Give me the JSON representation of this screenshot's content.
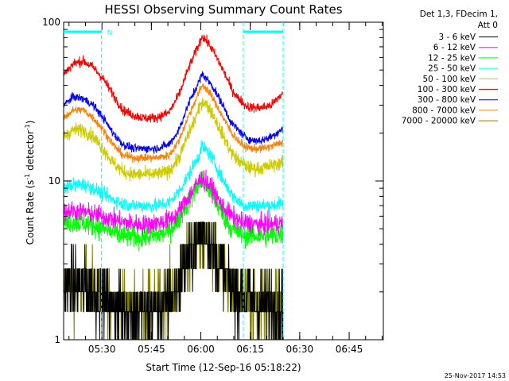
{
  "chart_data": {
    "type": "line",
    "title": "HESSI Observing Summary Count Rates",
    "xlabel": "Start Time (12-Sep-16 05:18:22)",
    "ylabel_main": "Count Rate (s",
    "ylabel_sup1": "-1",
    "ylabel_mid": " detector",
    "ylabel_sup2": "-1",
    "ylabel_end": ")",
    "y_scale": "log",
    "ylim": [
      1,
      100
    ],
    "y_ticks": [
      {
        "value": 1,
        "label": "1"
      },
      {
        "value": 10,
        "label": "10"
      },
      {
        "value": 100,
        "label": "100"
      }
    ],
    "x_range_min": [
      0,
      66.6
    ],
    "x_ticks": [
      {
        "t": 11.63,
        "label": "05:30"
      },
      {
        "t": 26.63,
        "label": "05:45"
      },
      {
        "t": 41.63,
        "label": "06:00"
      },
      {
        "t": 56.63,
        "label": "06:15"
      },
      {
        "t": 71.63,
        "label": "06:30"
      },
      {
        "t": 86.63,
        "label": "06:45"
      }
    ],
    "x_minor_step_min": 5,
    "legend_header": [
      "Det 1,3, FDecim 1,",
      "Att 0"
    ],
    "legend_position": "right",
    "flag_marker": "N",
    "flag_bars": [
      {
        "start_min": 0,
        "end_min": 11.5
      },
      {
        "start_min": 54.5,
        "end_min": 66.6
      }
    ],
    "boundary_lines_min": [
      11.5,
      54.5,
      66.6
    ],
    "series": [
      {
        "name": "3 - 6 keV",
        "color": "#000000"
      },
      {
        "name": "6 - 12 keV",
        "color": "#ff00ff"
      },
      {
        "name": "12 - 25 keV",
        "color": "#00ff00"
      },
      {
        "name": "25 - 50 keV",
        "color": "#00ffff"
      },
      {
        "name": "50 - 100 keV",
        "color": "#cccc00"
      },
      {
        "name": "100 - 300 keV",
        "color": "#ff0000"
      },
      {
        "name": "300 - 800 keV",
        "color": "#0000ff"
      },
      {
        "name": "800 - 7000 keV",
        "color": "#ff8000"
      },
      {
        "name": "7000 - 20000 keV",
        "color": "#808000"
      }
    ],
    "profiles": [
      {
        "series": "100 - 300 keV",
        "color": "#ff0000",
        "points": [
          [
            0,
            47
          ],
          [
            3,
            55
          ],
          [
            6,
            57
          ],
          [
            9,
            52
          ],
          [
            12,
            44
          ],
          [
            15,
            35
          ],
          [
            18,
            28
          ],
          [
            21,
            26
          ],
          [
            24,
            25
          ],
          [
            28,
            25
          ],
          [
            32,
            27
          ],
          [
            35,
            35
          ],
          [
            38,
            52
          ],
          [
            41,
            72
          ],
          [
            42,
            82
          ],
          [
            43,
            78
          ],
          [
            45,
            68
          ],
          [
            48,
            52
          ],
          [
            51,
            38
          ],
          [
            53,
            33
          ],
          [
            54,
            32
          ],
          [
            55,
            30
          ],
          [
            57,
            29
          ],
          [
            60,
            29
          ],
          [
            63,
            30
          ],
          [
            66,
            35
          ]
        ],
        "noise": 0.07
      },
      {
        "series": "300 - 800 keV",
        "color": "#0000ff",
        "points": [
          [
            0,
            30
          ],
          [
            3,
            34
          ],
          [
            6,
            33
          ],
          [
            9,
            30
          ],
          [
            12,
            25
          ],
          [
            15,
            20
          ],
          [
            18,
            17
          ],
          [
            21,
            16
          ],
          [
            24,
            16
          ],
          [
            28,
            16
          ],
          [
            32,
            17
          ],
          [
            35,
            21
          ],
          [
            38,
            31
          ],
          [
            41,
            42
          ],
          [
            42,
            47
          ],
          [
            43,
            45
          ],
          [
            45,
            40
          ],
          [
            48,
            31
          ],
          [
            51,
            23
          ],
          [
            53,
            21
          ],
          [
            54,
            20
          ],
          [
            55,
            19
          ],
          [
            57,
            18
          ],
          [
            60,
            18
          ],
          [
            63,
            19
          ],
          [
            66,
            21
          ]
        ],
        "noise": 0.06
      },
      {
        "series": "800 - 7000 keV",
        "color": "#ff8000",
        "points": [
          [
            0,
            25
          ],
          [
            3,
            28
          ],
          [
            6,
            28
          ],
          [
            9,
            25
          ],
          [
            12,
            21
          ],
          [
            15,
            17
          ],
          [
            18,
            14.5
          ],
          [
            21,
            14
          ],
          [
            24,
            14
          ],
          [
            28,
            14
          ],
          [
            32,
            14.5
          ],
          [
            35,
            18
          ],
          [
            38,
            26
          ],
          [
            41,
            36
          ],
          [
            42,
            40
          ],
          [
            43,
            39
          ],
          [
            45,
            34
          ],
          [
            48,
            26
          ],
          [
            51,
            20
          ],
          [
            53,
            18
          ],
          [
            54,
            17
          ],
          [
            55,
            16.5
          ],
          [
            57,
            16
          ],
          [
            60,
            16
          ],
          [
            63,
            16.5
          ],
          [
            66,
            17.5
          ]
        ],
        "noise": 0.06
      },
      {
        "series": "50 - 100 keV",
        "color": "#cccc00",
        "points": [
          [
            0,
            19
          ],
          [
            3,
            21
          ],
          [
            6,
            21
          ],
          [
            9,
            19
          ],
          [
            12,
            16
          ],
          [
            15,
            13
          ],
          [
            18,
            11.5
          ],
          [
            21,
            11
          ],
          [
            24,
            11
          ],
          [
            28,
            11
          ],
          [
            32,
            11.5
          ],
          [
            35,
            14
          ],
          [
            38,
            20
          ],
          [
            41,
            28
          ],
          [
            42,
            32
          ],
          [
            43,
            31
          ],
          [
            45,
            27
          ],
          [
            48,
            20
          ],
          [
            51,
            15
          ],
          [
            53,
            13.5
          ],
          [
            54,
            13
          ],
          [
            55,
            12.5
          ],
          [
            57,
            12
          ],
          [
            60,
            12
          ],
          [
            63,
            12.5
          ],
          [
            66,
            13
          ]
        ],
        "noise": 0.1
      },
      {
        "series": "25 - 50 keV",
        "color": "#00ffff",
        "points": [
          [
            0,
            9
          ],
          [
            3,
            9.5
          ],
          [
            6,
            9.5
          ],
          [
            9,
            9
          ],
          [
            12,
            8.3
          ],
          [
            15,
            7.6
          ],
          [
            18,
            7.2
          ],
          [
            21,
            7
          ],
          [
            24,
            7
          ],
          [
            28,
            7
          ],
          [
            32,
            7.3
          ],
          [
            35,
            8.6
          ],
          [
            38,
            11
          ],
          [
            41,
            14.5
          ],
          [
            42,
            16.5
          ],
          [
            43,
            16
          ],
          [
            45,
            14
          ],
          [
            48,
            10.5
          ],
          [
            51,
            8.2
          ],
          [
            53,
            7.5
          ],
          [
            54,
            7.2
          ],
          [
            55,
            7
          ],
          [
            57,
            7
          ],
          [
            60,
            7
          ],
          [
            63,
            7
          ],
          [
            66,
            7.2
          ]
        ],
        "noise": 0.1
      },
      {
        "series": "6 - 12 keV",
        "color": "#ff00ff",
        "points": [
          [
            0,
            6.5
          ],
          [
            6,
            6.4
          ],
          [
            12,
            6
          ],
          [
            18,
            5.5
          ],
          [
            24,
            5.3
          ],
          [
            30,
            5.5
          ],
          [
            34,
            6
          ],
          [
            38,
            8
          ],
          [
            41,
            10
          ],
          [
            42,
            10.5
          ],
          [
            43,
            10
          ],
          [
            45,
            9
          ],
          [
            48,
            7
          ],
          [
            51,
            6
          ],
          [
            54,
            5.5
          ],
          [
            60,
            5.3
          ],
          [
            66,
            5.4
          ]
        ],
        "noise": 0.14
      },
      {
        "series": "12 - 25 keV",
        "color": "#00ff00",
        "points": [
          [
            0,
            5.5
          ],
          [
            6,
            5.5
          ],
          [
            12,
            5
          ],
          [
            18,
            4.5
          ],
          [
            24,
            4.4
          ],
          [
            30,
            4.6
          ],
          [
            34,
            5.3
          ],
          [
            38,
            7.5
          ],
          [
            41,
            9.5
          ],
          [
            42,
            10
          ],
          [
            43,
            9.5
          ],
          [
            45,
            8.3
          ],
          [
            48,
            6.3
          ],
          [
            51,
            5
          ],
          [
            54,
            4.6
          ],
          [
            60,
            4.5
          ],
          [
            66,
            4.6
          ]
        ],
        "noise": 0.16
      },
      {
        "series": "3 - 6 keV",
        "color": "#000000",
        "points": [
          [
            0,
            2.2
          ],
          [
            6,
            2.2
          ],
          [
            12,
            1.8
          ],
          [
            18,
            1.5
          ],
          [
            24,
            1.5
          ],
          [
            30,
            1.6
          ],
          [
            34,
            2
          ],
          [
            38,
            3.4
          ],
          [
            41,
            4.5
          ],
          [
            42,
            4.8
          ],
          [
            43,
            4.5
          ],
          [
            45,
            3.8
          ],
          [
            48,
            2.8
          ],
          [
            51,
            2.1
          ],
          [
            54,
            1.8
          ],
          [
            60,
            1.6
          ],
          [
            66,
            1.6
          ]
        ],
        "noise": 0.22
      },
      {
        "series": "7000 - 20000 keV",
        "color": "#808000",
        "points": [
          [
            0,
            2.2
          ],
          [
            6,
            2.2
          ],
          [
            12,
            1.9
          ],
          [
            18,
            1.6
          ],
          [
            24,
            1.6
          ],
          [
            30,
            1.7
          ],
          [
            34,
            2.1
          ],
          [
            38,
            3.2
          ],
          [
            41,
            4.2
          ],
          [
            42,
            4.5
          ],
          [
            43,
            4.3
          ],
          [
            45,
            3.6
          ],
          [
            48,
            2.7
          ],
          [
            51,
            2.1
          ],
          [
            54,
            1.8
          ],
          [
            60,
            1.7
          ],
          [
            66,
            1.7
          ]
        ],
        "noise": 0.22
      }
    ]
  },
  "footer_stamp": "25-Nov-2017 14:53"
}
